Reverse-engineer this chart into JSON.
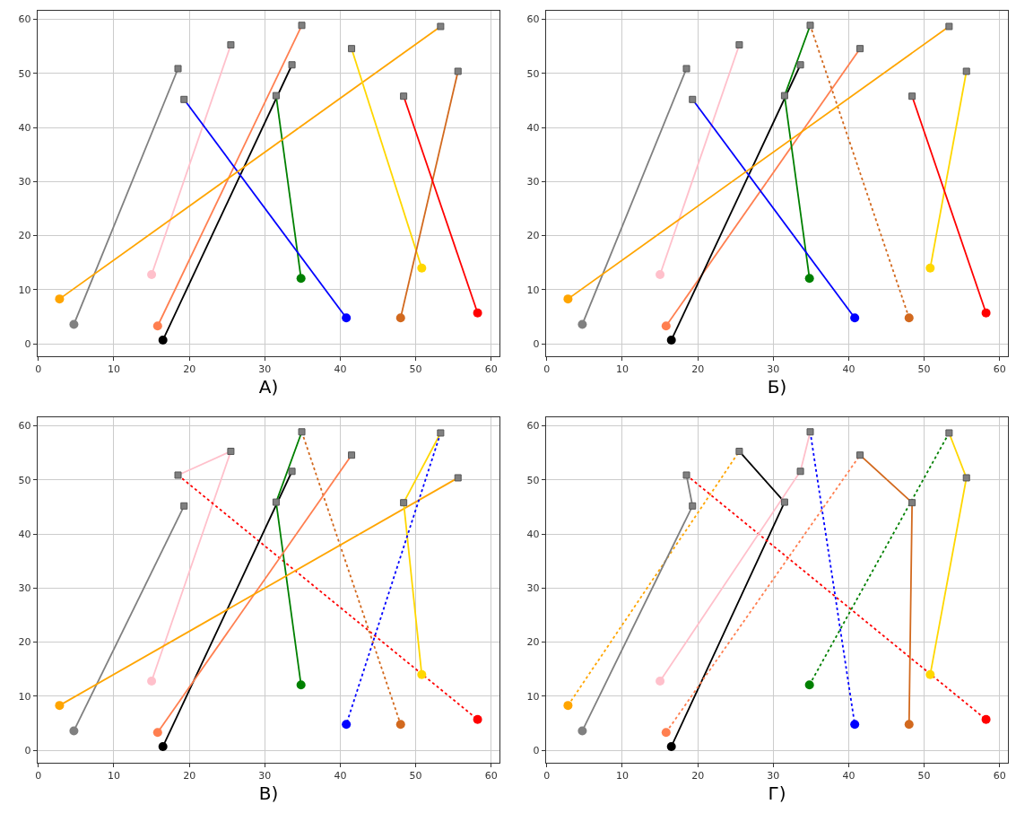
{
  "chart_data": [
    {
      "type": "line",
      "xlabel": "А)",
      "xlim": [
        -0.1,
        61.1
      ],
      "ylim": [
        -2.3,
        61.6
      ],
      "xticks": [
        0,
        10,
        20,
        30,
        40,
        50,
        60
      ],
      "yticks": [
        0,
        10,
        20,
        30,
        40,
        50,
        60
      ],
      "grid": true,
      "series": [
        {
          "type": "line",
          "color": "#808080",
          "x": [
            4.7,
            18.5
          ],
          "values": [
            3.6,
            50.9
          ]
        },
        {
          "type": "line",
          "color": "#ffc0cb",
          "x": [
            15,
            25.5
          ],
          "values": [
            12.8,
            55.3
          ]
        },
        {
          "type": "line",
          "color": "#ff7f50",
          "x": [
            15.8,
            34.9
          ],
          "values": [
            3.3,
            58.9
          ]
        },
        {
          "type": "line",
          "color": "#000000",
          "x": [
            16.5,
            33.6
          ],
          "values": [
            0.7,
            51.6
          ]
        },
        {
          "type": "line",
          "color": "#008000",
          "x": [
            34.8,
            31.5
          ],
          "values": [
            12.1,
            45.9
          ]
        },
        {
          "type": "line",
          "color": "#0000ff",
          "x": [
            40.8,
            19.3
          ],
          "values": [
            4.8,
            45.2
          ]
        },
        {
          "type": "line",
          "color": "#ffa500",
          "x": [
            2.8,
            53.3
          ],
          "values": [
            8.3,
            58.7
          ]
        },
        {
          "type": "line",
          "color": "#ffd700",
          "x": [
            50.8,
            41.5
          ],
          "values": [
            14,
            54.6
          ]
        },
        {
          "type": "line",
          "color": "#d2691e",
          "x": [
            48,
            55.6
          ],
          "values": [
            4.8,
            50.4
          ]
        },
        {
          "type": "line",
          "color": "#ff0000",
          "x": [
            58.2,
            48.4
          ],
          "values": [
            5.7,
            45.8
          ]
        },
        {
          "type": "scatter",
          "marker": "square",
          "color": "#808080",
          "x": [
            18.5,
            19.3,
            25.5,
            31.5,
            33.6,
            34.9,
            41.5,
            48.4,
            53.3,
            55.6
          ],
          "values": [
            50.9,
            45.2,
            55.3,
            45.9,
            51.6,
            58.9,
            54.6,
            45.8,
            58.7,
            50.4
          ]
        },
        {
          "type": "scatter",
          "marker": "circle",
          "colors": [
            "#ffa500",
            "#808080",
            "#ffc0cb",
            "#ff7f50",
            "#000000",
            "#008000",
            "#0000ff",
            "#d2691e",
            "#ffd700",
            "#ff0000"
          ],
          "x": [
            2.8,
            4.7,
            15,
            15.8,
            16.5,
            34.8,
            40.8,
            48,
            50.8,
            58.2
          ],
          "values": [
            8.3,
            3.6,
            12.8,
            3.3,
            0.7,
            12.1,
            4.8,
            4.8,
            14,
            5.7
          ]
        }
      ]
    },
    {
      "type": "line",
      "xlabel": "Б)",
      "xlim": [
        -0.1,
        61.1
      ],
      "ylim": [
        -2.3,
        61.6
      ],
      "xticks": [
        0,
        10,
        20,
        30,
        40,
        50,
        60
      ],
      "yticks": [
        0,
        10,
        20,
        30,
        40,
        50,
        60
      ],
      "grid": true,
      "series": [
        {
          "type": "line",
          "color": "#808080",
          "x": [
            4.7,
            18.5
          ],
          "values": [
            3.6,
            50.9
          ]
        },
        {
          "type": "line",
          "color": "#ffc0cb",
          "x": [
            15,
            25.5
          ],
          "values": [
            12.8,
            55.3
          ]
        },
        {
          "type": "line",
          "color": "#ff7f50",
          "x": [
            15.8,
            41.5
          ],
          "values": [
            3.3,
            54.6
          ]
        },
        {
          "type": "line",
          "color": "#000000",
          "x": [
            16.5,
            33.6
          ],
          "values": [
            0.7,
            51.6
          ]
        },
        {
          "type": "line",
          "color": "#008000",
          "x": [
            34.8,
            31.5,
            34.9
          ],
          "values": [
            12.1,
            45.9,
            58.9
          ]
        },
        {
          "type": "line",
          "color": "#d2691e",
          "line_style": "dotted",
          "x": [
            48,
            34.9
          ],
          "values": [
            4.8,
            58.9
          ]
        },
        {
          "type": "line",
          "color": "#0000ff",
          "x": [
            40.8,
            19.3
          ],
          "values": [
            4.8,
            45.2
          ]
        },
        {
          "type": "line",
          "color": "#ffa500",
          "x": [
            2.8,
            53.3
          ],
          "values": [
            8.3,
            58.7
          ]
        },
        {
          "type": "line",
          "color": "#ffd700",
          "x": [
            50.8,
            55.6
          ],
          "values": [
            14,
            50.4
          ]
        },
        {
          "type": "line",
          "color": "#ff0000",
          "x": [
            58.2,
            48.4
          ],
          "values": [
            5.7,
            45.8
          ]
        },
        {
          "type": "scatter",
          "marker": "square",
          "color": "#808080",
          "x": [
            18.5,
            19.3,
            25.5,
            31.5,
            33.6,
            34.9,
            41.5,
            48.4,
            53.3,
            55.6
          ],
          "values": [
            50.9,
            45.2,
            55.3,
            45.9,
            51.6,
            58.9,
            54.6,
            45.8,
            58.7,
            50.4
          ]
        },
        {
          "type": "scatter",
          "marker": "circle",
          "colors": [
            "#ffa500",
            "#808080",
            "#ffc0cb",
            "#ff7f50",
            "#000000",
            "#008000",
            "#0000ff",
            "#d2691e",
            "#ffd700",
            "#ff0000"
          ],
          "x": [
            2.8,
            4.7,
            15,
            15.8,
            16.5,
            34.8,
            40.8,
            48,
            50.8,
            58.2
          ],
          "values": [
            8.3,
            3.6,
            12.8,
            3.3,
            0.7,
            12.1,
            4.8,
            4.8,
            14,
            5.7
          ]
        }
      ]
    },
    {
      "type": "line",
      "xlabel": "В)",
      "xlim": [
        -0.1,
        61.1
      ],
      "ylim": [
        -2.3,
        61.6
      ],
      "xticks": [
        0,
        10,
        20,
        30,
        40,
        50,
        60
      ],
      "yticks": [
        0,
        10,
        20,
        30,
        40,
        50,
        60
      ],
      "grid": true,
      "series": [
        {
          "type": "line",
          "color": "#808080",
          "x": [
            4.7,
            19.3
          ],
          "values": [
            3.6,
            45.2
          ]
        },
        {
          "type": "line",
          "color": "#ffc0cb",
          "x": [
            15,
            25.5,
            18.5
          ],
          "values": [
            12.8,
            55.3,
            50.9
          ]
        },
        {
          "type": "line",
          "color": "#ff0000",
          "line_style": "dotted",
          "x": [
            18.5,
            58.2
          ],
          "values": [
            50.9,
            5.7
          ]
        },
        {
          "type": "line",
          "color": "#000000",
          "x": [
            16.5,
            33.6
          ],
          "values": [
            0.7,
            51.6
          ]
        },
        {
          "type": "line",
          "color": "#008000",
          "x": [
            34.8,
            31.5,
            34.9
          ],
          "values": [
            12.1,
            45.9,
            58.9
          ]
        },
        {
          "type": "line",
          "color": "#d2691e",
          "line_style": "dotted",
          "x": [
            34.9,
            48
          ],
          "values": [
            58.9,
            4.8
          ]
        },
        {
          "type": "line",
          "color": "#ff7f50",
          "x": [
            15.8,
            41.5
          ],
          "values": [
            3.3,
            54.6
          ]
        },
        {
          "type": "line",
          "color": "#ffa500",
          "x": [
            2.8,
            55.6
          ],
          "values": [
            8.3,
            50.4
          ]
        },
        {
          "type": "line",
          "color": "#ffd700",
          "x": [
            50.8,
            48.4,
            53.3
          ],
          "values": [
            14,
            45.8,
            58.7
          ]
        },
        {
          "type": "line",
          "color": "#0000ff",
          "line_style": "dotted",
          "x": [
            53.3,
            40.8
          ],
          "values": [
            58.7,
            4.8
          ]
        },
        {
          "type": "scatter",
          "marker": "square",
          "color": "#808080",
          "x": [
            18.5,
            19.3,
            25.5,
            31.5,
            33.6,
            34.9,
            41.5,
            48.4,
            53.3,
            55.6
          ],
          "values": [
            50.9,
            45.2,
            55.3,
            45.9,
            51.6,
            58.9,
            54.6,
            45.8,
            58.7,
            50.4
          ]
        },
        {
          "type": "scatter",
          "marker": "circle",
          "colors": [
            "#ffa500",
            "#808080",
            "#ffc0cb",
            "#ff7f50",
            "#000000",
            "#008000",
            "#0000ff",
            "#d2691e",
            "#ffd700",
            "#ff0000"
          ],
          "x": [
            2.8,
            4.7,
            15,
            15.8,
            16.5,
            34.8,
            40.8,
            48,
            50.8,
            58.2
          ],
          "values": [
            8.3,
            3.6,
            12.8,
            3.3,
            0.7,
            12.1,
            4.8,
            4.8,
            14,
            5.7
          ]
        }
      ]
    },
    {
      "type": "line",
      "xlabel": "Г)",
      "xlim": [
        -0.1,
        61.1
      ],
      "ylim": [
        -2.3,
        61.6
      ],
      "xticks": [
        0,
        10,
        20,
        30,
        40,
        50,
        60
      ],
      "yticks": [
        0,
        10,
        20,
        30,
        40,
        50,
        60
      ],
      "grid": true,
      "series": [
        {
          "type": "line",
          "color": "#ffa500",
          "line_style": "dotted",
          "x": [
            2.8,
            25.5
          ],
          "values": [
            8.3,
            55.3
          ]
        },
        {
          "type": "line",
          "color": "#000000",
          "x": [
            16.5,
            31.5,
            25.5
          ],
          "values": [
            0.7,
            45.9,
            55.3
          ]
        },
        {
          "type": "line",
          "color": "#808080",
          "x": [
            4.7,
            19.3,
            18.5
          ],
          "values": [
            3.6,
            45.2,
            50.9
          ]
        },
        {
          "type": "line",
          "color": "#ff0000",
          "line_style": "dotted",
          "x": [
            18.5,
            58.2
          ],
          "values": [
            50.9,
            5.7
          ]
        },
        {
          "type": "line",
          "color": "#ffc0cb",
          "x": [
            15,
            33.6,
            34.9
          ],
          "values": [
            12.8,
            51.6,
            58.9
          ]
        },
        {
          "type": "line",
          "color": "#0000ff",
          "line_style": "dotted",
          "x": [
            34.9,
            40.8
          ],
          "values": [
            58.9,
            4.8
          ]
        },
        {
          "type": "line",
          "color": "#ff7f50",
          "line_style": "dotted",
          "x": [
            15.8,
            41.5
          ],
          "values": [
            3.3,
            54.6
          ]
        },
        {
          "type": "line",
          "color": "#d2691e",
          "x": [
            41.5,
            48.4,
            48
          ],
          "values": [
            54.6,
            45.8,
            4.8
          ]
        },
        {
          "type": "line",
          "color": "#008000",
          "line_style": "dotted",
          "x": [
            34.8,
            53.3
          ],
          "values": [
            12.1,
            58.7
          ]
        },
        {
          "type": "line",
          "color": "#ffd700",
          "x": [
            53.3,
            55.6,
            50.8
          ],
          "values": [
            58.7,
            50.4,
            14
          ]
        },
        {
          "type": "scatter",
          "marker": "square",
          "color": "#808080",
          "x": [
            18.5,
            19.3,
            25.5,
            31.5,
            33.6,
            34.9,
            41.5,
            48.4,
            53.3,
            55.6
          ],
          "values": [
            50.9,
            45.2,
            55.3,
            45.9,
            51.6,
            58.9,
            54.6,
            45.8,
            58.7,
            50.4
          ]
        },
        {
          "type": "scatter",
          "marker": "circle",
          "colors": [
            "#ffa500",
            "#808080",
            "#ffc0cb",
            "#ff7f50",
            "#000000",
            "#008000",
            "#0000ff",
            "#d2691e",
            "#ffd700",
            "#ff0000"
          ],
          "x": [
            2.8,
            4.7,
            15,
            15.8,
            16.5,
            34.8,
            40.8,
            48,
            50.8,
            58.2
          ],
          "values": [
            8.3,
            3.6,
            12.8,
            3.3,
            0.7,
            12.1,
            4.8,
            4.8,
            14,
            5.7
          ]
        }
      ]
    }
  ]
}
